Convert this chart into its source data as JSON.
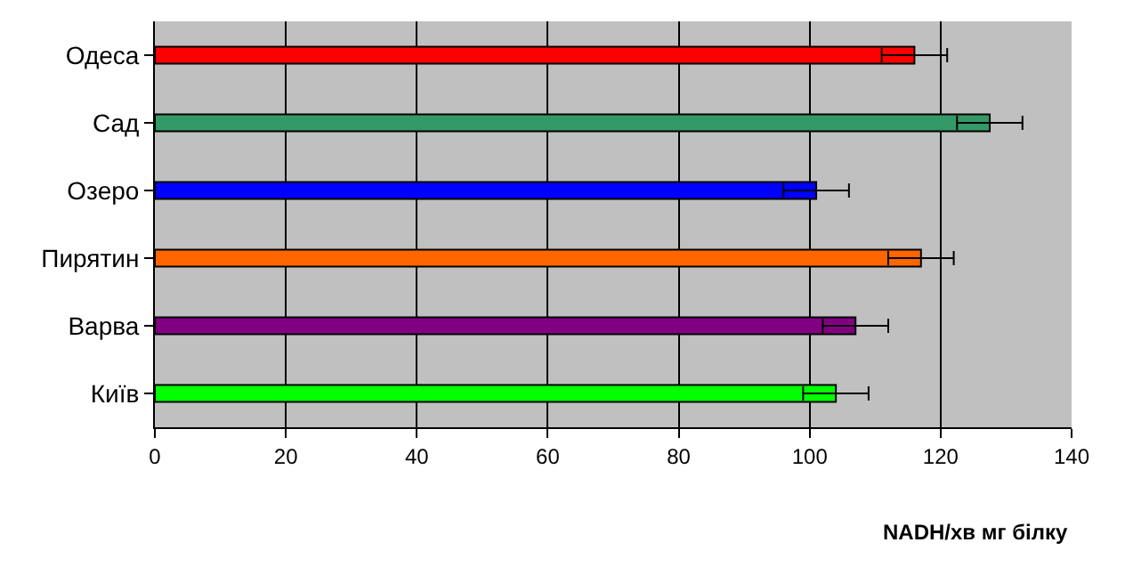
{
  "chart_data": {
    "type": "bar",
    "orientation": "horizontal",
    "xlabel": "NADH/хв мг білку",
    "categories": [
      "Одеса",
      "Сад",
      "Озеро",
      "Пирятин",
      "Варва",
      "Київ"
    ],
    "values": [
      116,
      127.5,
      101,
      117,
      107,
      104
    ],
    "errors": [
      5,
      5,
      5,
      5,
      5,
      5
    ],
    "colors": [
      "#ff0000",
      "#339966",
      "#0000ff",
      "#ff6600",
      "#800080",
      "#00ff00"
    ],
    "xlim": [
      0,
      140
    ],
    "xticks": [
      0,
      20,
      40,
      60,
      80,
      100,
      120,
      140
    ],
    "grid": "x"
  }
}
